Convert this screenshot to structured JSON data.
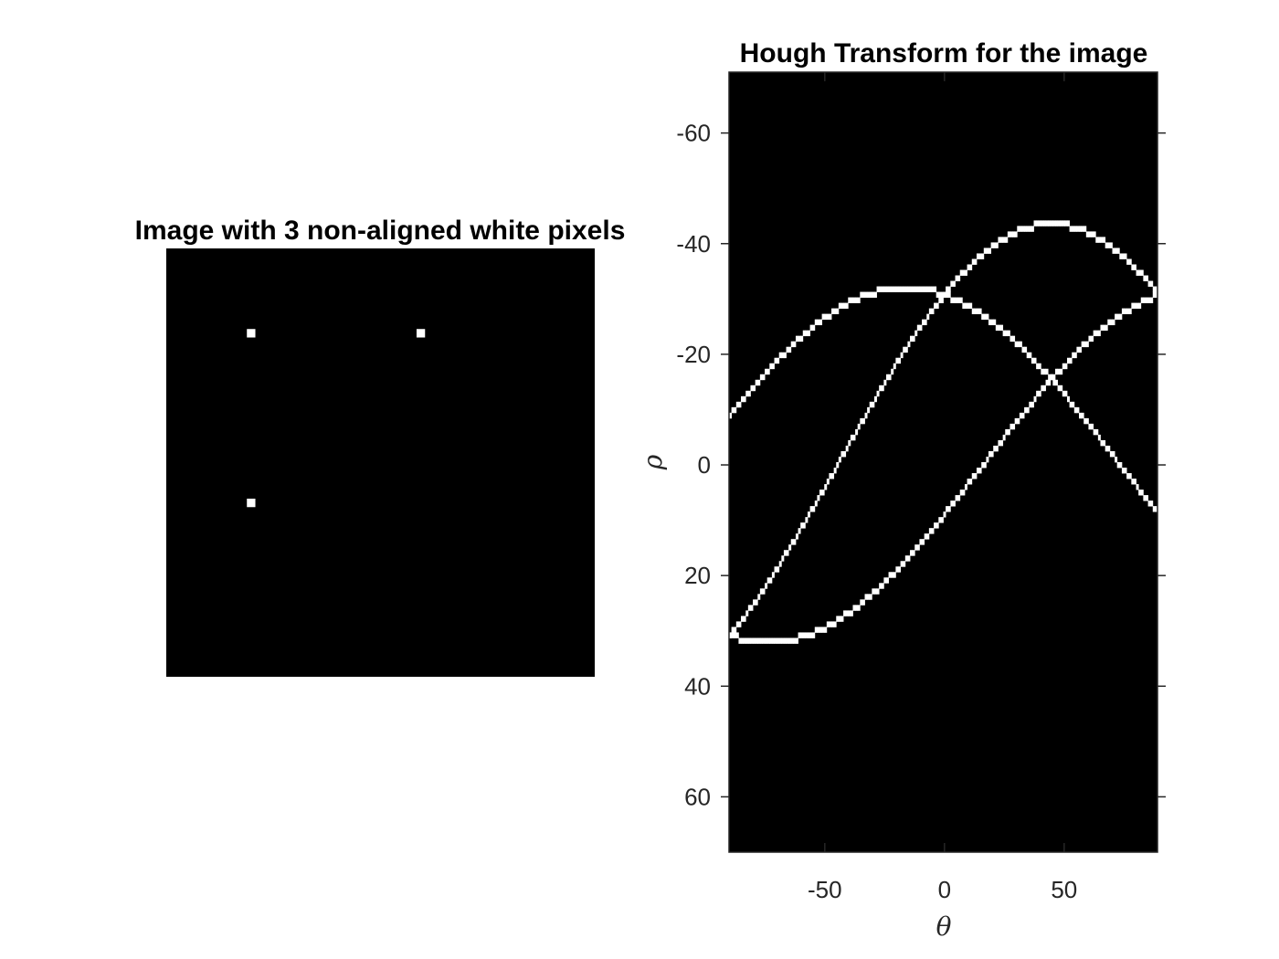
{
  "chart_data": [
    {
      "type": "image",
      "title": "Image with 3 non-aligned white pixels",
      "background": "#000000",
      "foreground": "#ffffff",
      "grid_size": [
        101,
        101
      ],
      "pixels": [
        {
          "row": 20,
          "col": 20
        },
        {
          "row": 20,
          "col": 60
        },
        {
          "row": 60,
          "col": 20
        }
      ]
    },
    {
      "type": "heatmap",
      "title": "Hough Transform for the image",
      "xlabel": "θ",
      "ylabel": "ρ",
      "xlim": [
        -90,
        89
      ],
      "ylim": [
        -71,
        70
      ],
      "y_reversed": true,
      "xticks": [
        -50,
        0,
        50
      ],
      "yticks": [
        -60,
        -40,
        -20,
        0,
        20,
        40,
        60
      ],
      "background": "#000000",
      "curve_color": "#ffffff",
      "curves": [
        {
          "name": "point (20,20)",
          "x_coord": 20,
          "y_coord": 20
        },
        {
          "name": "point (60,20)",
          "x_coord": 60,
          "y_coord": 20
        },
        {
          "name": "point (20,60)",
          "x_coord": 20,
          "y_coord": 60
        }
      ],
      "image_center": [
        51,
        51
      ]
    }
  ]
}
